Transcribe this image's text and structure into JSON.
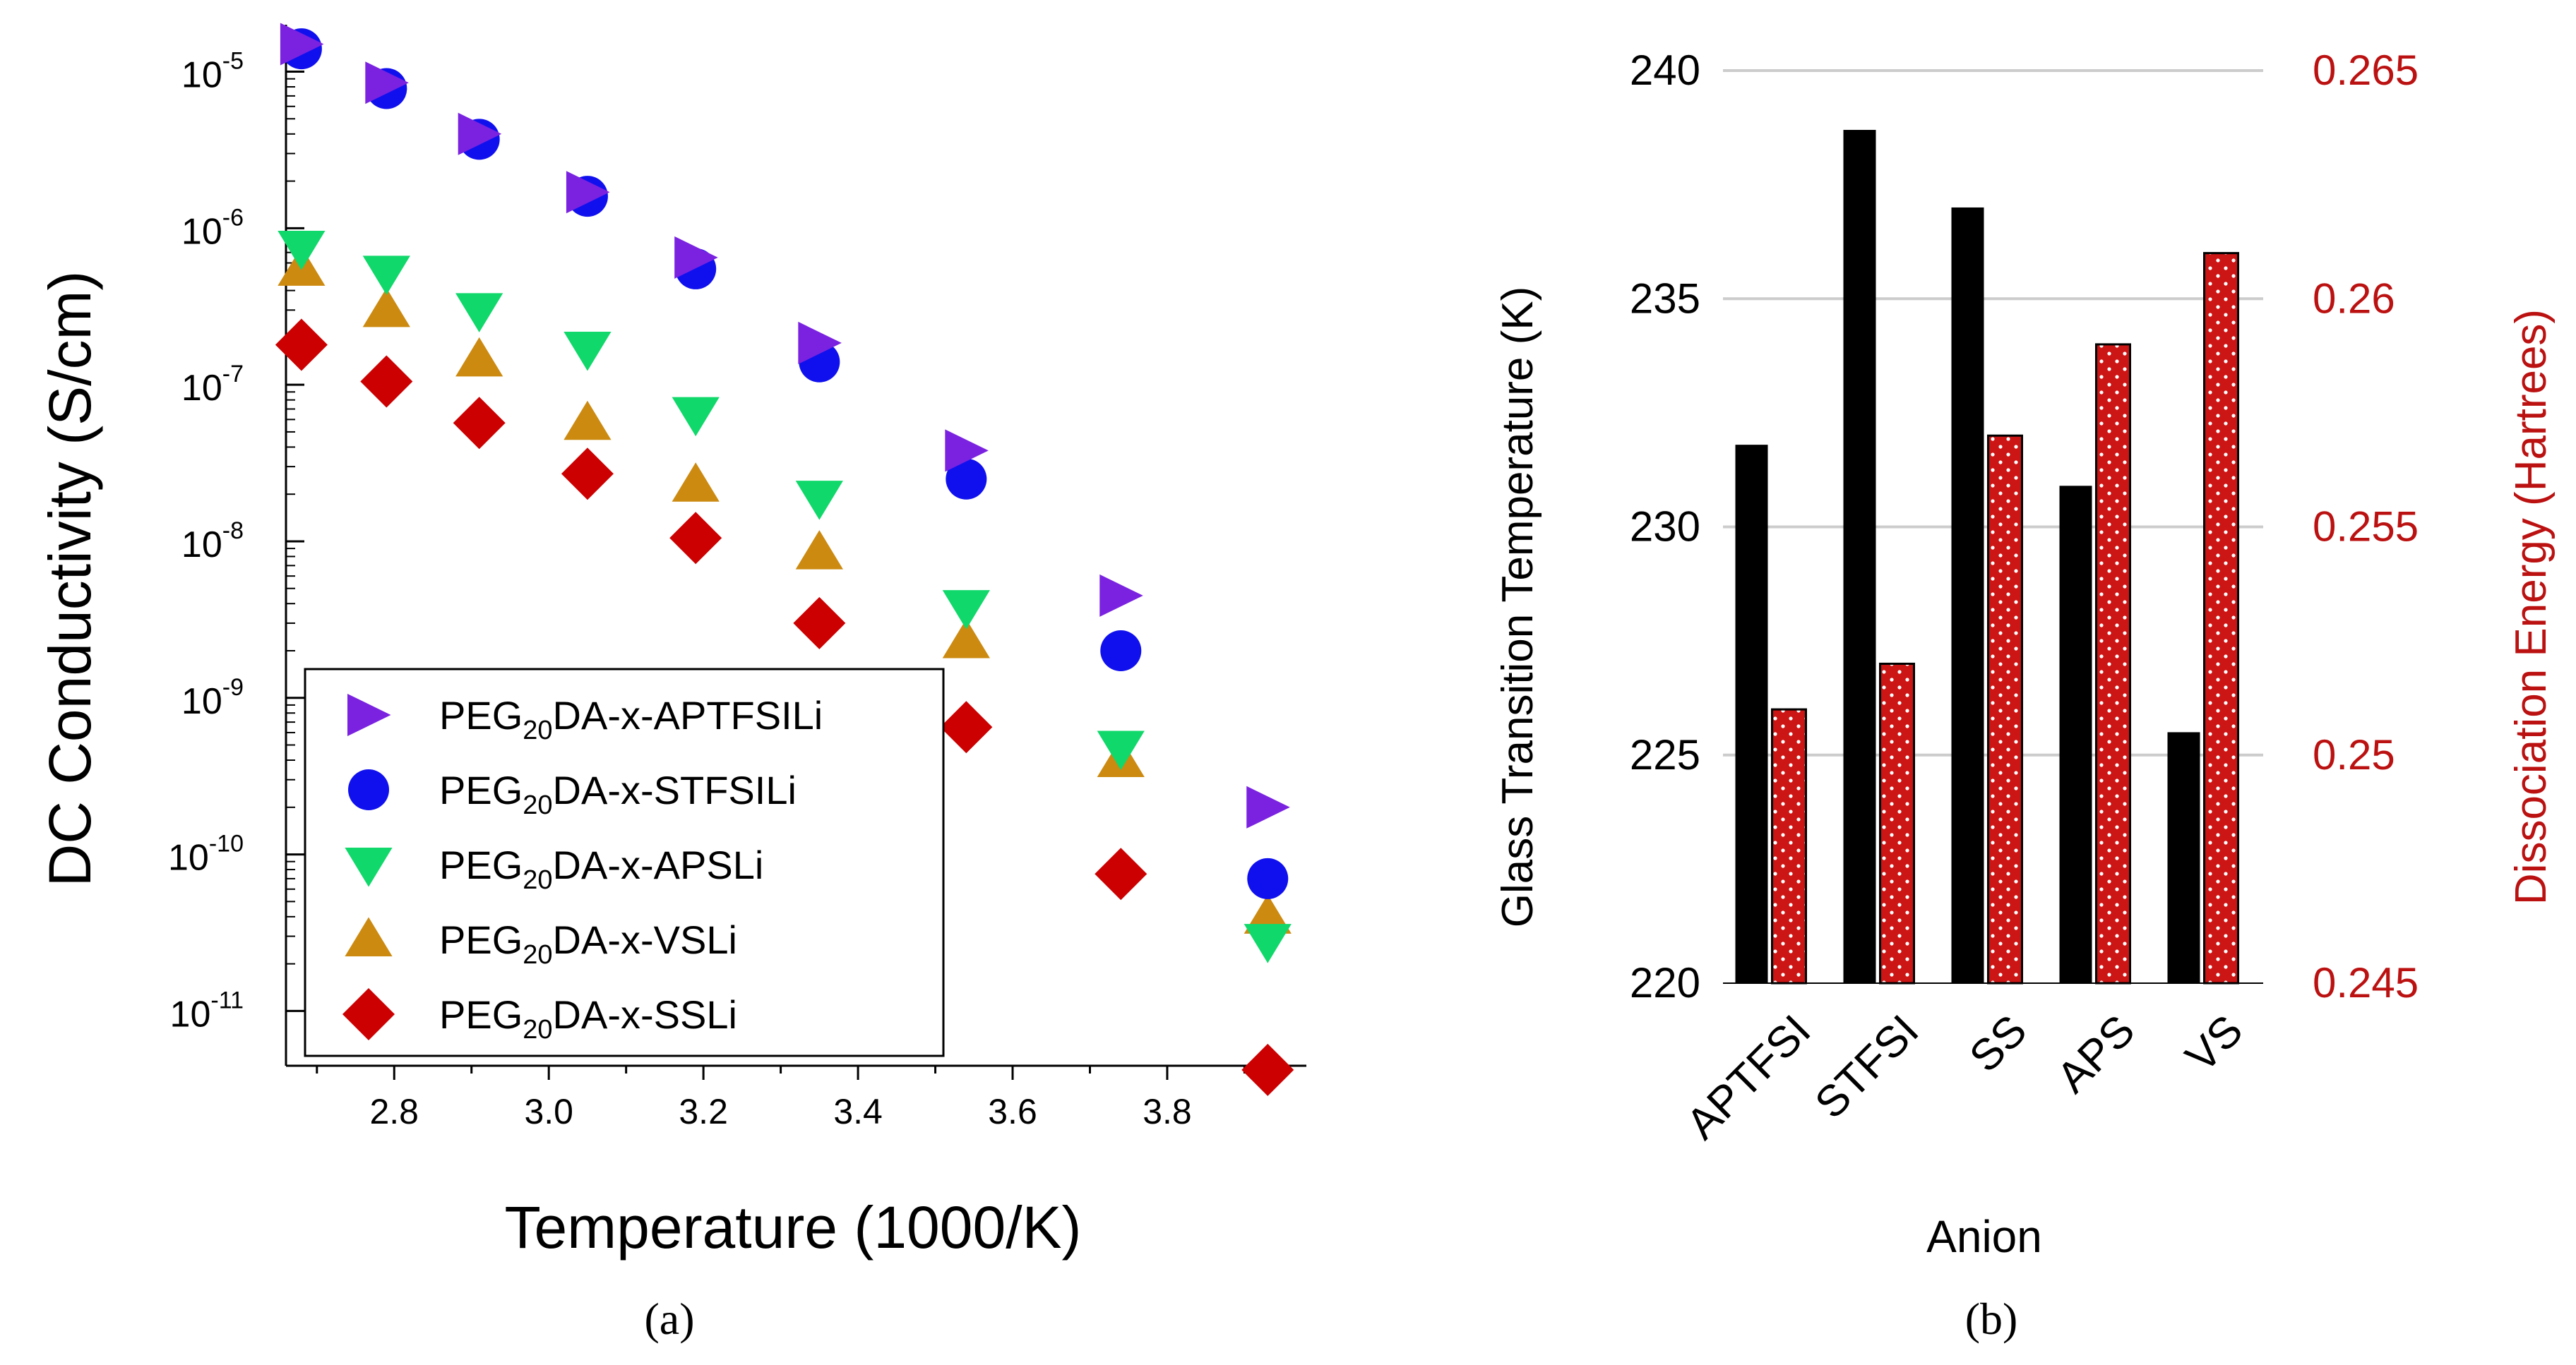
{
  "colors": {
    "apt": "#7a22e0",
    "stfsi": "#1010ee",
    "aps": "#10d86a",
    "vs": "#cc8a10",
    "ss": "#cc0000",
    "bar_tg": "#000000",
    "bar_de": "#cc1515",
    "right_axis": "#bb1111",
    "grid": "#cccccc"
  },
  "captions": {
    "a": "(a)",
    "b": "(b)"
  },
  "chart_data": [
    {
      "type": "scatter",
      "id": "a",
      "xlabel": "Temperature (1000/K)",
      "ylabel": "DC Conductivity (S/cm)",
      "yscale": "log",
      "xlim": [
        2.66,
        3.98
      ],
      "ylim_exp": [
        -11.35,
        -4.7
      ],
      "xticks": [
        "2.8",
        "3.0",
        "3.2",
        "3.4",
        "3.6",
        "3.8"
      ],
      "xtick_values": [
        2.8,
        3.0,
        3.2,
        3.4,
        3.6,
        3.8
      ],
      "ytick_exps": [
        -5,
        -6,
        -7,
        -8,
        -9,
        -10,
        -11
      ],
      "ytick_base": "10",
      "ytick_sups": [
        "-5",
        "-6",
        "-7",
        "-8",
        "-9",
        "-10",
        "-11"
      ],
      "legend_position": "lower-center",
      "series": [
        {
          "key": "apt",
          "name": {
            "pre": "PEG",
            "sub": "20",
            "post": "DA-x-APTFSILi"
          },
          "marker": "triangle-right",
          "x": [
            2.68,
            2.79,
            2.91,
            3.05,
            3.19,
            3.35,
            3.54,
            3.74,
            3.93
          ],
          "y": [
            1.5e-05,
            8.5e-06,
            4e-06,
            1.7e-06,
            6.5e-07,
            1.85e-07,
            3.8e-08,
            4.5e-09,
            2e-10
          ]
        },
        {
          "key": "stfsi",
          "name": {
            "pre": "PEG",
            "sub": "20",
            "post": "DA-x-STFSILi"
          },
          "marker": "circle",
          "x": [
            2.68,
            2.79,
            2.91,
            3.05,
            3.19,
            3.35,
            3.54,
            3.74,
            3.93
          ],
          "y": [
            1.4e-05,
            7.8e-06,
            3.7e-06,
            1.6e-06,
            5.5e-07,
            1.4e-07,
            2.5e-08,
            2e-09,
            7e-11
          ]
        },
        {
          "key": "aps",
          "name": {
            "pre": "PEG",
            "sub": "20",
            "post": "DA-x-APSLi"
          },
          "marker": "triangle-down",
          "x": [
            2.68,
            2.79,
            2.91,
            3.05,
            3.19,
            3.35,
            3.54,
            3.74,
            3.93
          ],
          "y": [
            7.5e-07,
            5.2e-07,
            3e-07,
            1.7e-07,
            6.5e-08,
            1.9e-08,
            3.8e-09,
            4.8e-10,
            2.8e-11
          ]
        },
        {
          "key": "vs",
          "name": {
            "pre": "PEG",
            "sub": "20",
            "post": "DA-x-VSLi"
          },
          "marker": "triangle-up",
          "x": [
            2.68,
            2.79,
            2.91,
            3.05,
            3.19,
            3.35,
            3.54,
            3.74,
            3.93
          ],
          "y": [
            5.5e-07,
            3e-07,
            1.45e-07,
            5.7e-08,
            2.3e-08,
            8.5e-09,
            2.3e-09,
            4e-10,
            4e-11
          ]
        },
        {
          "key": "ss",
          "name": {
            "pre": "PEG",
            "sub": "20",
            "post": "DA-x-SSLi"
          },
          "marker": "diamond",
          "x": [
            2.68,
            2.79,
            2.91,
            3.05,
            3.19,
            3.35,
            3.54,
            3.74,
            3.93
          ],
          "y": [
            1.8e-07,
            1.05e-07,
            5.7e-08,
            2.7e-08,
            1.05e-08,
            3e-09,
            6.5e-10,
            7.5e-11,
            4.2e-12
          ]
        }
      ]
    },
    {
      "type": "bar",
      "id": "b",
      "xlabel": "Anion",
      "ylabel": "Glass Transition Temperature (K)",
      "y2label": "Dissociation Energy (Hartrees)",
      "categories": [
        "APTFSI",
        "STFSI",
        "SS",
        "APS",
        "VS"
      ],
      "ylim": [
        220,
        240
      ],
      "yticks": [
        "240",
        "235",
        "230",
        "225",
        "220"
      ],
      "ytick_values": [
        240,
        235,
        230,
        225,
        220
      ],
      "y2lim": [
        0.245,
        0.265
      ],
      "y2ticks": [
        "0.265",
        "0.26",
        "0.255",
        "0.25",
        "0.245"
      ],
      "y2tick_values": [
        0.265,
        0.26,
        0.255,
        0.25,
        0.245
      ],
      "grid": true,
      "series": [
        {
          "name": "Glass Transition Temperature",
          "axis": "left",
          "values": [
            231.8,
            238.7,
            237.0,
            230.9,
            225.5
          ]
        },
        {
          "name": "Dissociation Energy",
          "axis": "right",
          "values": [
            0.251,
            0.252,
            0.257,
            0.259,
            0.261
          ]
        }
      ]
    }
  ]
}
